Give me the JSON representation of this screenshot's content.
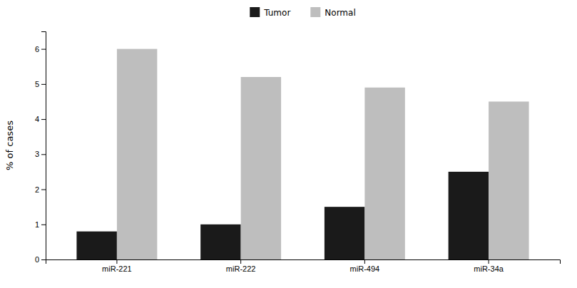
{
  "chart_data": {
    "type": "bar",
    "categories": [
      "miR-221",
      "miR-222",
      "miR-494",
      "miR-34a"
    ],
    "series": [
      {
        "name": "Tumor",
        "color": "#1a1a1a",
        "values": [
          0.8,
          1.0,
          1.5,
          2.5
        ]
      },
      {
        "name": "Normal",
        "color": "#bebebe",
        "values": [
          6.0,
          5.2,
          4.9,
          4.5
        ]
      }
    ],
    "ylabel": "% of cases",
    "ylim": [
      0,
      6.5
    ],
    "yticks": [
      0,
      1,
      2,
      3,
      4,
      5,
      6
    ],
    "legend": "upper center",
    "grid": false
  }
}
